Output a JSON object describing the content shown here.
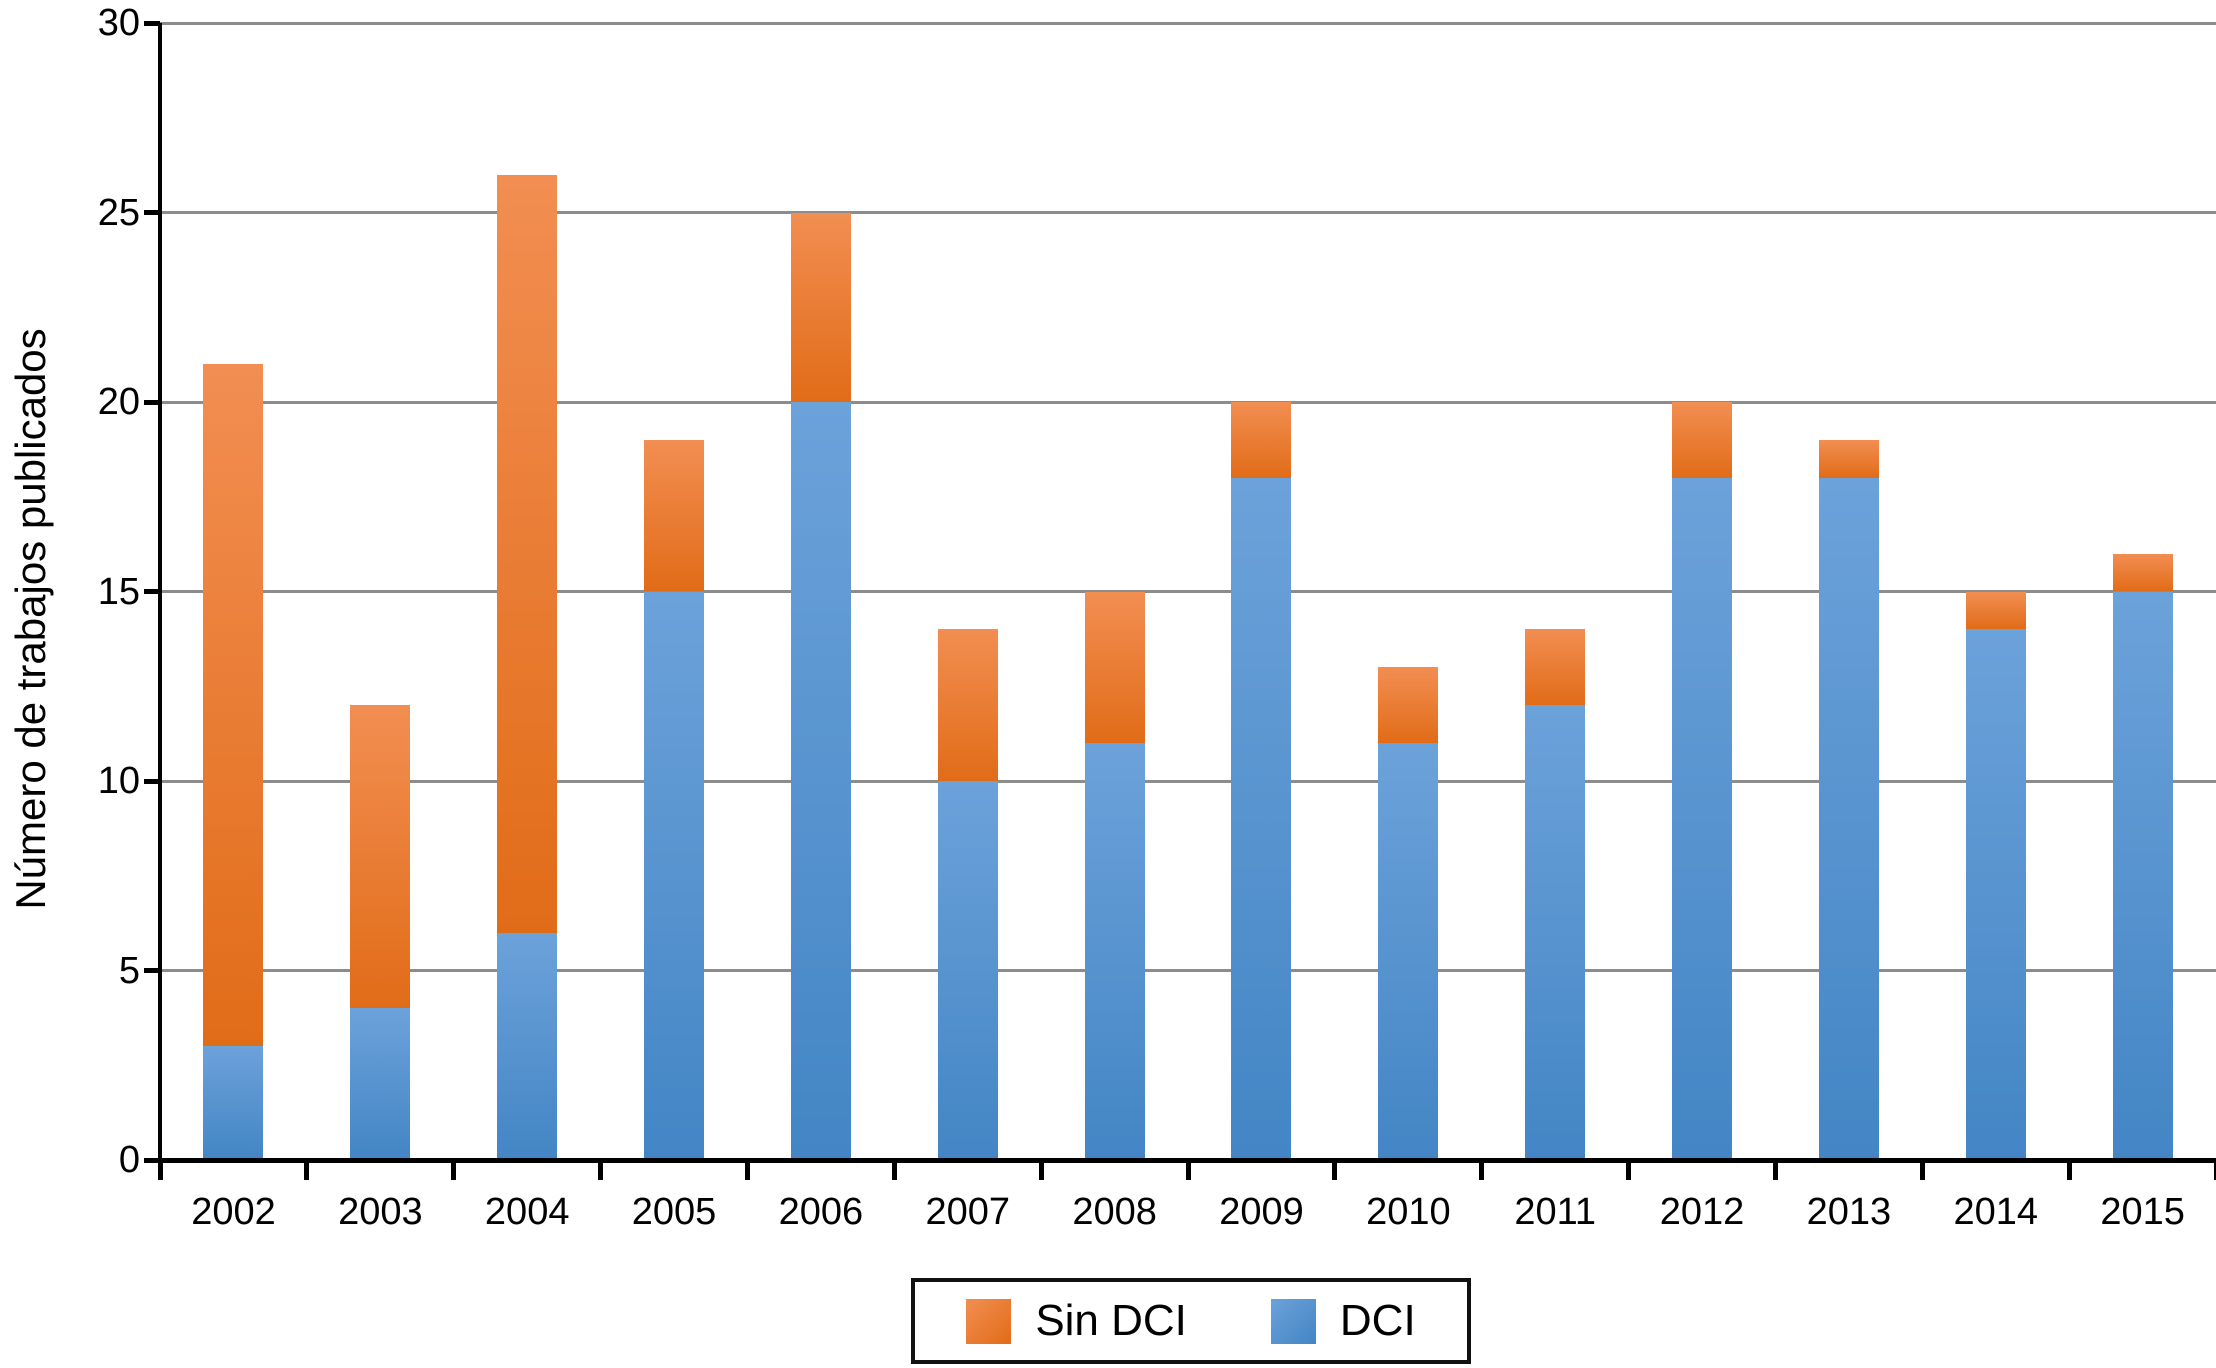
{
  "chart_data": {
    "type": "bar",
    "stacked": true,
    "ylabel": "Número de trabajos publicados",
    "categories": [
      "2002",
      "2003",
      "2004",
      "2005",
      "2006",
      "2007",
      "2008",
      "2009",
      "2010",
      "2011",
      "2012",
      "2013",
      "2014",
      "2015"
    ],
    "series": [
      {
        "name": "DCI",
        "color_top": "#6CA2DA",
        "color_bottom": "#4385C5",
        "values": [
          3,
          4,
          6,
          15,
          20,
          10,
          11,
          18,
          11,
          12,
          18,
          18,
          14,
          15
        ]
      },
      {
        "name": "Sin DCI",
        "color_top": "#F28E52",
        "color_bottom": "#E16C18",
        "values": [
          18,
          8,
          20,
          4,
          5,
          4,
          4,
          2,
          2,
          2,
          2,
          1,
          1,
          1
        ]
      }
    ],
    "totals": [
      21,
      12,
      26,
      19,
      25,
      14,
      15,
      20,
      13,
      14,
      20,
      19,
      15,
      16
    ],
    "ylim": [
      0,
      30
    ],
    "yticks": [
      0,
      5,
      10,
      15,
      20,
      25,
      30
    ],
    "grid": "horizontal",
    "gridline_color": "#8C8C8C",
    "axis_color": "#000000",
    "legend": {
      "position": "bottom",
      "entries": [
        {
          "label": "Sin DCI",
          "color": "#E8762E",
          "color_top": "#F28E52",
          "color_bottom": "#E16C18"
        },
        {
          "label": "DCI",
          "color": "#4D94D4",
          "color_top": "#6CA2DA",
          "color_bottom": "#4385C5"
        }
      ]
    }
  }
}
